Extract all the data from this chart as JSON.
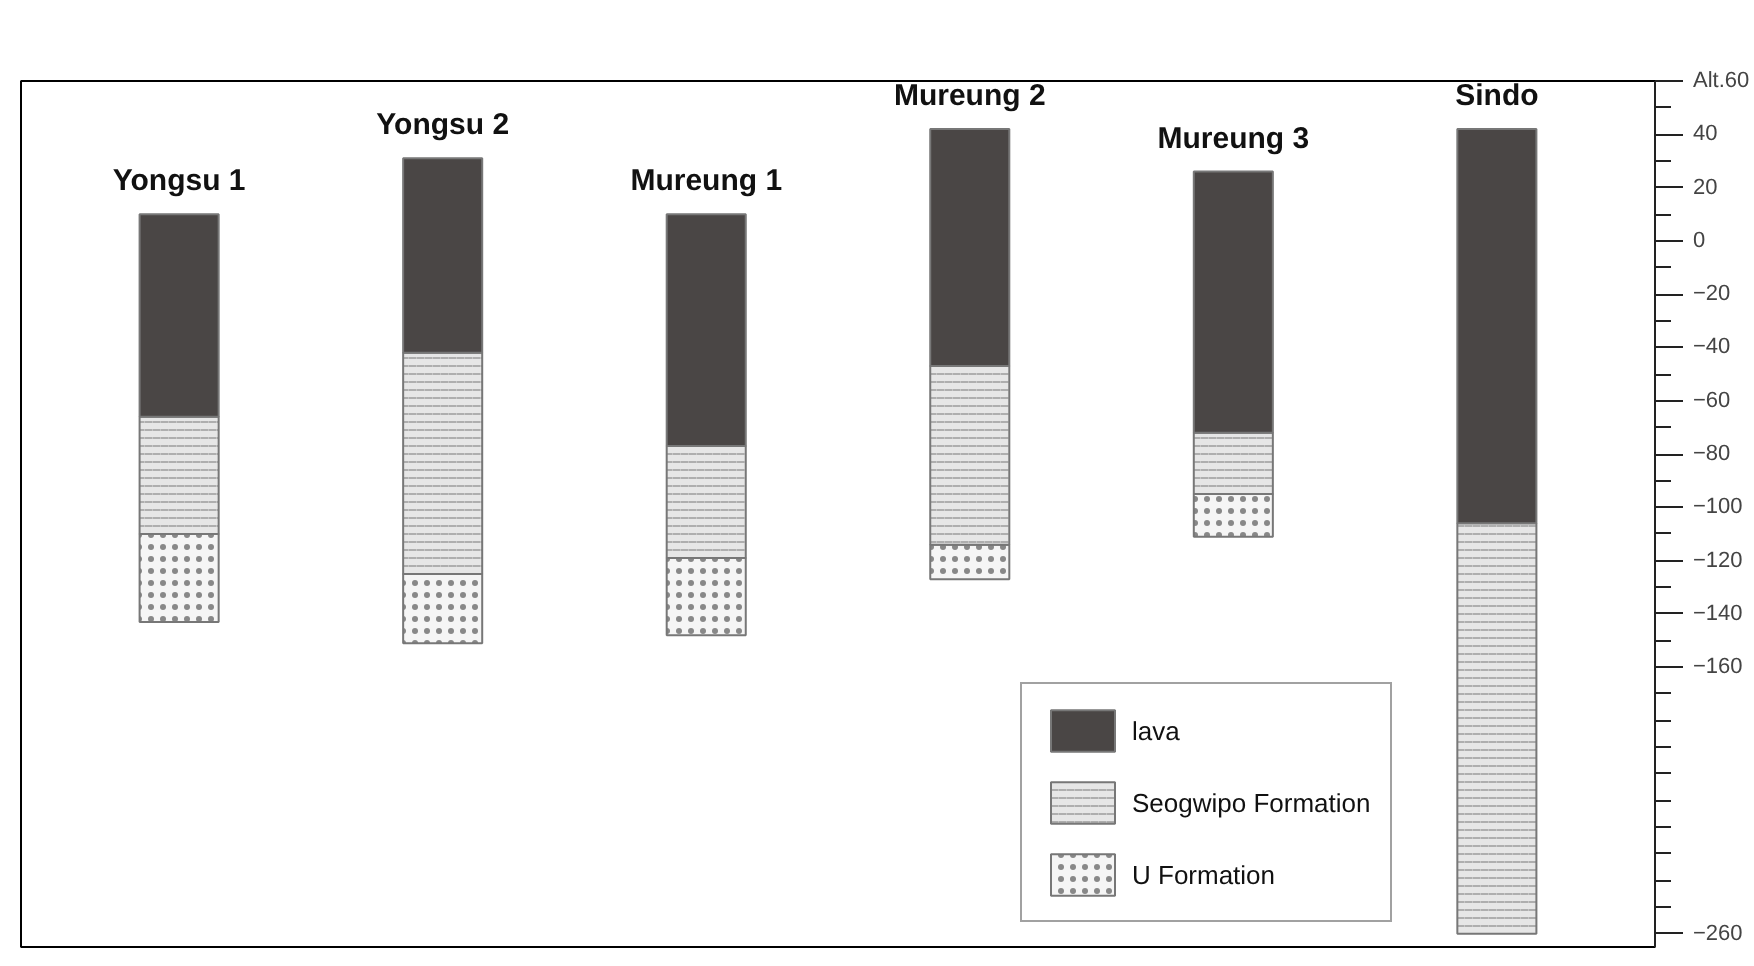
{
  "chart_data": {
    "type": "bar",
    "categories": [
      "Yongsu 1",
      "Yongsu 2",
      "Mureung 1",
      "Mureung 2",
      "Mureung 3",
      "Sindo"
    ],
    "series": [
      {
        "name": "U Formation",
        "color": "#f5f5f5",
        "base": [
          -143,
          -151,
          -148,
          -127,
          -111,
          null
        ],
        "values": [
          33,
          26,
          29,
          13,
          16,
          null
        ]
      },
      {
        "name": "Seogwipo Formation",
        "color": "#e6e6e6",
        "base": [
          -110,
          -125,
          -119,
          -114,
          -95,
          -260
        ],
        "values": [
          44,
          83,
          42,
          67,
          23,
          154
        ]
      },
      {
        "name": "lava",
        "color": "#4a4645",
        "base": [
          -66,
          -42,
          -77,
          -47,
          -72,
          -106
        ],
        "values": [
          76,
          73,
          87,
          89,
          98,
          148
        ]
      }
    ],
    "ylim": [
      -265,
      60
    ],
    "yticks": [
      {
        "value": 60,
        "label": "Alt.60"
      },
      40,
      20,
      0,
      -20,
      -40,
      -60,
      -80,
      -100,
      -120,
      -140,
      -160,
      -260
    ],
    "grid": false,
    "legend": "bottom right"
  }
}
